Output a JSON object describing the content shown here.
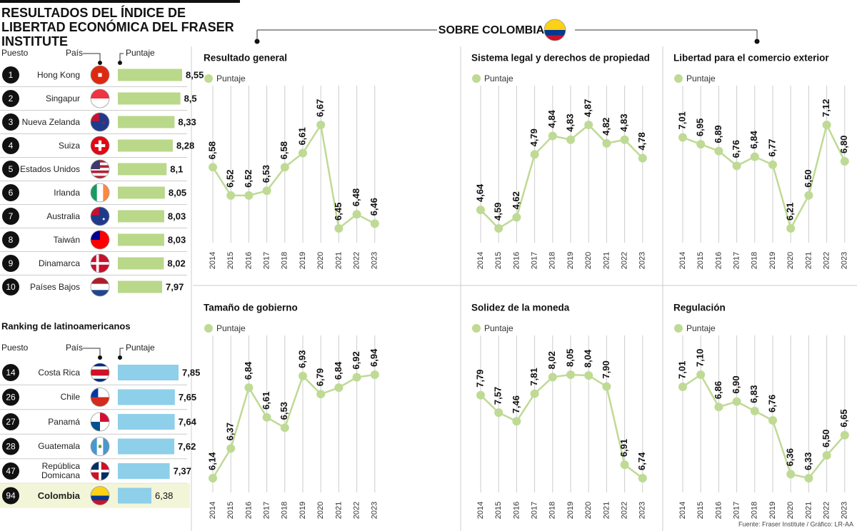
{
  "title": "RESULTADOS DEL ÍNDICE DE LIBERTAD ECONÓMICA DEL FRASER INSTITUTE",
  "top_ranking": {
    "headers": {
      "rank": "Puesto",
      "country": "País",
      "score": "Puntaje"
    },
    "ranks": [
      1,
      2,
      3,
      4,
      5,
      6,
      7,
      8,
      9,
      10
    ],
    "countries": [
      "Hong Kong",
      "Singapur",
      "Nueva Zelanda",
      "Suiza",
      "Estados Unidos",
      "Irlanda",
      "Australia",
      "Taiwán",
      "Dinamarca",
      "Países Bajos"
    ],
    "scores": [
      8.55,
      8.5,
      8.33,
      8.28,
      8.1,
      8.05,
      8.03,
      8.03,
      8.02,
      7.97
    ],
    "value_labels": [
      "8,55",
      "8,5",
      "8,33",
      "8,28",
      "8,1",
      "8,05",
      "8,03",
      "8,03",
      "8,02",
      "7,97"
    ],
    "color": "#b9d88a"
  },
  "latam_ranking": {
    "title": "Ranking de latinoamericanos",
    "headers": {
      "rank": "Puesto",
      "country": "País",
      "score": "Puntaje"
    },
    "ranks": [
      14,
      26,
      27,
      28,
      47,
      94
    ],
    "countries": [
      "Costa Rica",
      "Chile",
      "Panamá",
      "Guatemala",
      "República Domicana",
      "Colombia"
    ],
    "scores": [
      7.85,
      7.65,
      7.64,
      7.62,
      7.37,
      6.38
    ],
    "value_labels": [
      "7,85",
      "7,65",
      "7,64",
      "7,62",
      "7,37",
      "6,38"
    ],
    "color": "#8ecfe9"
  },
  "section_title": "SOBRE COLOMBIA",
  "chart_data": [
    {
      "type": "line",
      "title": "Resultado general",
      "categories": [
        2014,
        2015,
        2016,
        2017,
        2018,
        2019,
        2020,
        2021,
        2022,
        2023
      ],
      "series": [
        {
          "name": "Puntaje",
          "color": "#bfda94",
          "values": [
            6.58,
            6.52,
            6.52,
            6.53,
            6.58,
            6.61,
            6.67,
            6.45,
            6.48,
            6.46
          ],
          "value_labels": [
            "6,58",
            "6,52",
            "6,52",
            "6,53",
            "6,58",
            "6,61",
            "6,67",
            "6,45",
            "6,48",
            "6,46"
          ]
        }
      ]
    },
    {
      "type": "line",
      "title": "Sistema legal y derechos de propiedad",
      "categories": [
        2014,
        2015,
        2016,
        2017,
        2018,
        2019,
        2020,
        2021,
        2022,
        2023
      ],
      "series": [
        {
          "name": "Puntaje",
          "color": "#bfda94",
          "values": [
            4.64,
            4.59,
            4.62,
            4.79,
            4.84,
            4.83,
            4.87,
            4.82,
            4.83,
            4.78
          ],
          "value_labels": [
            "4,64",
            "4,59",
            "4,62",
            "4,79",
            "4,84",
            "4,83",
            "4,87",
            "4,82",
            "4,83",
            "4,78"
          ]
        }
      ]
    },
    {
      "type": "line",
      "title": "Libertad para el comercio exterior",
      "categories": [
        2014,
        2015,
        2016,
        2017,
        2018,
        2019,
        2020,
        2021,
        2022,
        2023
      ],
      "series": [
        {
          "name": "Puntaje",
          "color": "#bfda94",
          "values": [
            7.01,
            6.95,
            6.89,
            6.76,
            6.84,
            6.77,
            6.21,
            6.5,
            7.12,
            6.8
          ],
          "value_labels": [
            "7,01",
            "6,95",
            "6,89",
            "6,76",
            "6,84",
            "6,77",
            "6,21",
            "6,50",
            "7,12",
            "6,80"
          ]
        }
      ]
    },
    {
      "type": "line",
      "title": "Tamaño de gobierno",
      "categories": [
        2014,
        2015,
        2016,
        2017,
        2018,
        2019,
        2020,
        2021,
        2022,
        2023
      ],
      "series": [
        {
          "name": "Puntaje",
          "color": "#bfda94",
          "values": [
            6.14,
            6.37,
            6.84,
            6.61,
            6.53,
            6.93,
            6.79,
            6.84,
            6.92,
            6.94
          ],
          "value_labels": [
            "6,14",
            "6,37",
            "6,84",
            "6,61",
            "6,53",
            "6,93",
            "6,79",
            "6,84",
            "6,92",
            "6,94"
          ]
        }
      ]
    },
    {
      "type": "line",
      "title": "Solidez de la moneda",
      "categories": [
        2014,
        2015,
        2016,
        2017,
        2018,
        2019,
        2020,
        2021,
        2022,
        2023
      ],
      "series": [
        {
          "name": "Puntaje",
          "color": "#bfda94",
          "values": [
            7.79,
            7.57,
            7.46,
            7.81,
            8.02,
            8.05,
            8.04,
            7.9,
            6.91,
            6.74
          ],
          "value_labels": [
            "7,79",
            "7,57",
            "7,46",
            "7,81",
            "8,02",
            "8,05",
            "8,04",
            "7,90",
            "6,91",
            "6,74"
          ]
        }
      ]
    },
    {
      "type": "line",
      "title": "Regulación",
      "categories": [
        2014,
        2015,
        2016,
        2017,
        2018,
        2019,
        2020,
        2021,
        2022,
        2023
      ],
      "series": [
        {
          "name": "Puntaje",
          "color": "#bfda94",
          "values": [
            7.01,
            7.1,
            6.86,
            6.9,
            6.83,
            6.76,
            6.36,
            6.33,
            6.5,
            6.65
          ],
          "value_labels": [
            "7,01",
            "7,10",
            "6,86",
            "6,90",
            "6,83",
            "6,76",
            "6,36",
            "6,33",
            "6,50",
            "6,65"
          ]
        }
      ]
    }
  ],
  "source": "Fuente: Fraser Institute / Gráfico: LR-AA"
}
